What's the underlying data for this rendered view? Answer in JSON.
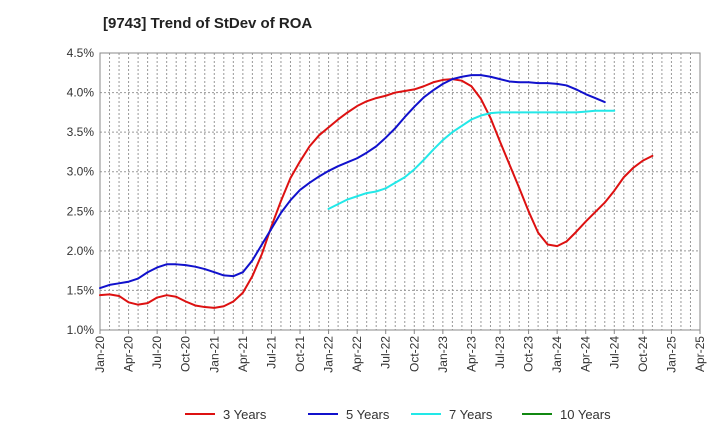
{
  "chart_data": {
    "type": "line",
    "title": "[9743]  Trend of StDev of ROA",
    "xlabel": "",
    "ylabel": "",
    "y_ticks": [
      "1.0%",
      "1.5%",
      "2.0%",
      "2.5%",
      "3.0%",
      "3.5%",
      "4.0%",
      "4.5%"
    ],
    "ylim": [
      1.0,
      4.5
    ],
    "x_ticks": [
      "Jan-20",
      "Apr-20",
      "Jul-20",
      "Oct-20",
      "Jan-21",
      "Apr-21",
      "Jul-21",
      "Oct-21",
      "Jan-22",
      "Apr-22",
      "Jul-22",
      "Oct-22",
      "Jan-23",
      "Apr-23",
      "Jul-23",
      "Oct-23",
      "Jan-24",
      "Apr-24",
      "Jul-24",
      "Oct-24",
      "Jan-25",
      "Apr-25"
    ],
    "grid": true,
    "legend_position": "bottom",
    "series": [
      {
        "name": "3 Years",
        "color": "#dd1111",
        "start": "Jan-20",
        "values": [
          1.44,
          1.45,
          1.43,
          1.35,
          1.32,
          1.34,
          1.41,
          1.44,
          1.42,
          1.36,
          1.31,
          1.29,
          1.28,
          1.3,
          1.36,
          1.47,
          1.68,
          1.96,
          2.31,
          2.63,
          2.92,
          3.13,
          3.32,
          3.46,
          3.56,
          3.66,
          3.75,
          3.83,
          3.89,
          3.93,
          3.96,
          4.0,
          4.02,
          4.04,
          4.08,
          4.13,
          4.16,
          4.17,
          4.15,
          4.08,
          3.92,
          3.68,
          3.38,
          3.09,
          2.8,
          2.5,
          2.23,
          2.08,
          2.06,
          2.12,
          2.24,
          2.37,
          2.49,
          2.61,
          2.76,
          2.93,
          3.05,
          3.14,
          3.2
        ]
      },
      {
        "name": "5 Years",
        "color": "#1111cc",
        "start": "Jan-20",
        "values": [
          1.53,
          1.57,
          1.59,
          1.61,
          1.65,
          1.73,
          1.79,
          1.83,
          1.83,
          1.82,
          1.8,
          1.77,
          1.73,
          1.69,
          1.68,
          1.73,
          1.88,
          2.08,
          2.28,
          2.48,
          2.64,
          2.77,
          2.86,
          2.94,
          3.01,
          3.07,
          3.12,
          3.17,
          3.24,
          3.32,
          3.43,
          3.55,
          3.69,
          3.82,
          3.94,
          4.03,
          4.11,
          4.17,
          4.2,
          4.22,
          4.22,
          4.2,
          4.17,
          4.14,
          4.13,
          4.13,
          4.12,
          4.12,
          4.11,
          4.09,
          4.04,
          3.98,
          3.93,
          3.88
        ]
      },
      {
        "name": "7 Years",
        "color": "#22e8e8",
        "start": "Jan-22",
        "values": [
          2.53,
          2.59,
          2.65,
          2.69,
          2.73,
          2.75,
          2.79,
          2.86,
          2.93,
          3.03,
          3.15,
          3.28,
          3.4,
          3.5,
          3.58,
          3.66,
          3.71,
          3.74,
          3.75,
          3.75,
          3.75,
          3.75,
          3.75,
          3.75,
          3.75,
          3.75,
          3.75,
          3.76,
          3.77,
          3.77,
          3.77
        ]
      },
      {
        "name": "10 Years",
        "color": "#118811",
        "start": "Jan-25",
        "values": []
      }
    ]
  }
}
